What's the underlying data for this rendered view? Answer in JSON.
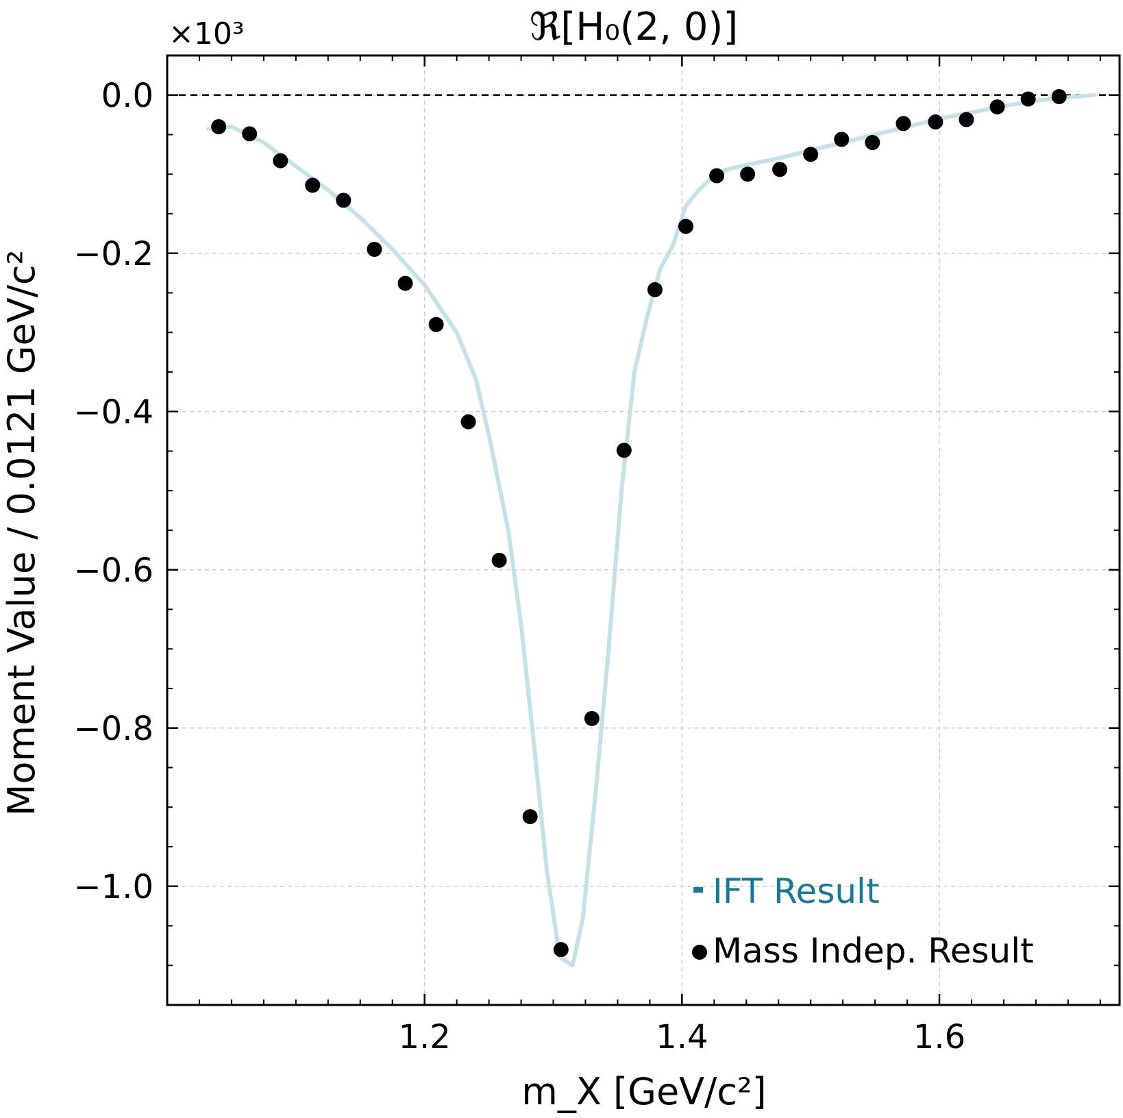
{
  "chart_data": {
    "type": "scatter",
    "title": "ℜ[H₀(2, 0)]",
    "xlabel": "m_X [GeV/c²]",
    "ylabel": "Moment Value / 0.0121 GeV/c²",
    "y_offset_label": "×10³",
    "xlim": [
      1.0,
      1.74
    ],
    "ylim": [
      -1.15,
      0.05
    ],
    "x_ticks": [
      1.2,
      1.4,
      1.6
    ],
    "x_tick_labels": [
      "1.2",
      "1.4",
      "1.6"
    ],
    "y_ticks": [
      0.0,
      -0.2,
      -0.4,
      -0.6,
      -0.8,
      -1.0
    ],
    "y_tick_labels": [
      "0.0",
      "−0.2",
      "−0.4",
      "−0.6",
      "−0.8",
      "−1.0"
    ],
    "grid": true,
    "reference_line_y": 0.0,
    "legend_position": "bottom-right",
    "series": [
      {
        "name": "IFT Result",
        "kind": "line",
        "color": "#c6e0e8",
        "legend_color": "#1a7a96",
        "x": [
          1.032,
          1.05,
          1.075,
          1.1,
          1.125,
          1.15,
          1.175,
          1.2,
          1.225,
          1.24,
          1.25,
          1.265,
          1.275,
          1.285,
          1.295,
          1.305,
          1.315,
          1.323,
          1.333,
          1.343,
          1.353,
          1.363,
          1.373,
          1.383,
          1.393,
          1.403,
          1.413,
          1.423,
          1.433,
          1.445,
          1.46,
          1.475,
          1.5,
          1.525,
          1.55,
          1.575,
          1.6,
          1.625,
          1.65,
          1.675,
          1.7,
          1.72
        ],
        "y": [
          -0.043,
          -0.04,
          -0.06,
          -0.09,
          -0.12,
          -0.155,
          -0.195,
          -0.24,
          -0.3,
          -0.36,
          -0.43,
          -0.55,
          -0.67,
          -0.82,
          -0.98,
          -1.09,
          -1.1,
          -1.04,
          -0.88,
          -0.7,
          -0.5,
          -0.35,
          -0.28,
          -0.22,
          -0.19,
          -0.14,
          -0.12,
          -0.105,
          -0.095,
          -0.09,
          -0.085,
          -0.08,
          -0.07,
          -0.06,
          -0.05,
          -0.04,
          -0.03,
          -0.022,
          -0.014,
          -0.007,
          -0.003,
          0.0
        ]
      },
      {
        "name": "Mass Indep. Result",
        "kind": "scatter",
        "color": "#000000",
        "x": [
          1.04,
          1.064,
          1.088,
          1.113,
          1.137,
          1.161,
          1.185,
          1.209,
          1.234,
          1.258,
          1.282,
          1.306,
          1.33,
          1.355,
          1.379,
          1.403,
          1.427,
          1.451,
          1.476,
          1.5,
          1.524,
          1.548,
          1.572,
          1.597,
          1.621,
          1.645,
          1.669,
          1.693
        ],
        "y": [
          -0.04,
          -0.049,
          -0.083,
          -0.114,
          -0.133,
          -0.195,
          -0.238,
          -0.29,
          -0.413,
          -0.588,
          -0.912,
          -1.08,
          -0.788,
          -0.449,
          -0.246,
          -0.166,
          -0.102,
          -0.1,
          -0.094,
          -0.075,
          -0.056,
          -0.06,
          -0.036,
          -0.034,
          -0.031,
          -0.015,
          -0.005,
          -0.002
        ]
      }
    ]
  }
}
